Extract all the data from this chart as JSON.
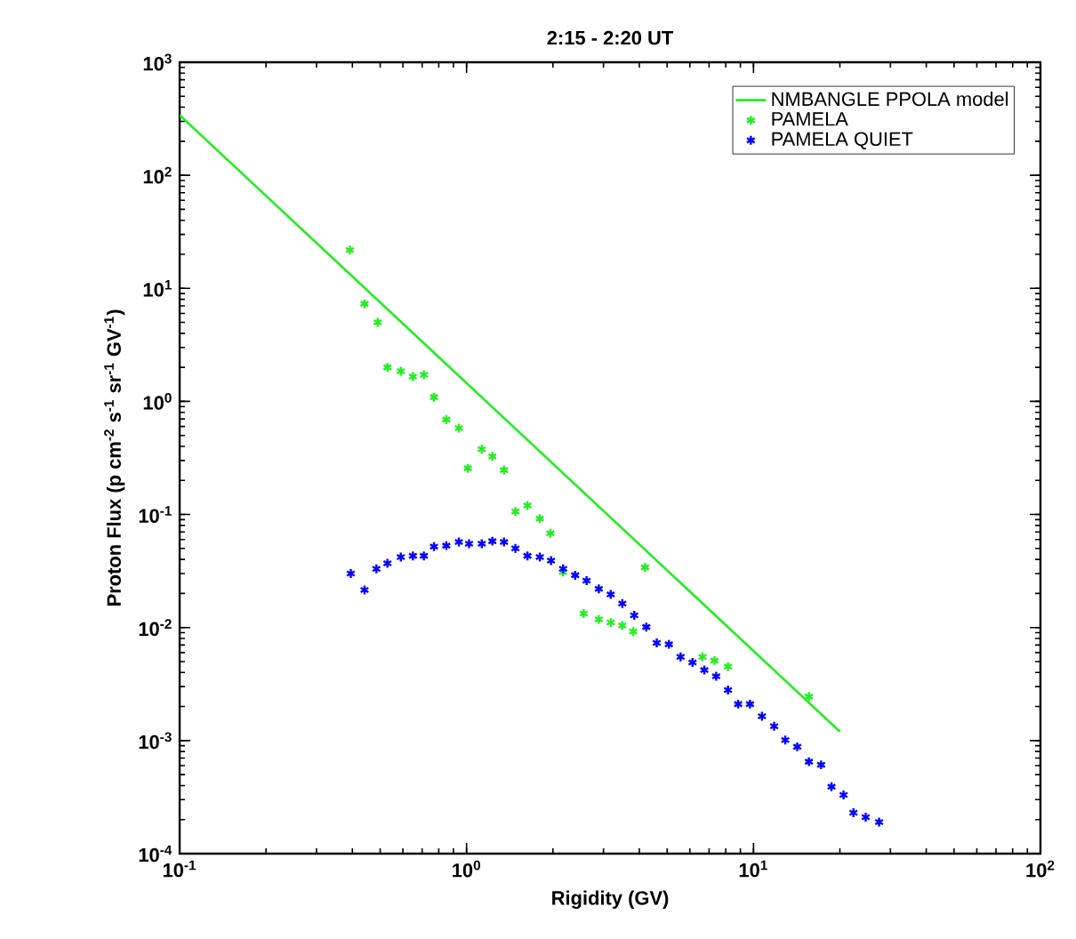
{
  "chart_data": {
    "type": "scatter",
    "title": "2:15 - 2:20 UT",
    "xlabel": "Rigidity (GV)",
    "ylabel": "Proton Flux (p cm$^{-2}$ s$^{-1}$ sr$^{-1}$ GV$^{-1}$)",
    "log": "xy",
    "legend": "top right",
    "grid": false,
    "xlim": [
      0.1,
      100
    ],
    "ylim": [
      0.0001,
      1000
    ],
    "xticks": [
      {
        "value": 0.1,
        "label": "10$^{-1}$"
      },
      {
        "value": 1,
        "label": "10$^{0}$"
      },
      {
        "value": 10,
        "label": "10$^{1}$"
      },
      {
        "value": 100,
        "label": "10$^{2}$"
      }
    ],
    "yticks": [
      {
        "value": 0.0001,
        "label": "10$^{-4}$"
      },
      {
        "value": 0.001,
        "label": "10$^{-3}$"
      },
      {
        "value": 0.01,
        "label": "10$^{-2}$"
      },
      {
        "value": 0.1,
        "label": "10$^{-1}$"
      },
      {
        "value": 1,
        "label": "10$^{0}$"
      },
      {
        "value": 10,
        "label": "10$^{1}$"
      },
      {
        "value": 100,
        "label": "10$^{2}$"
      },
      {
        "value": 1000,
        "label": "10$^{3}$"
      }
    ],
    "series": [
      {
        "name": "NMBANGLE PPOLA model",
        "type": "line",
        "color": "#22ee22",
        "line_style": "solid",
        "x": [
          0.1,
          20
        ],
        "values": [
          340,
          0.0012
        ]
      },
      {
        "name": "PAMELA",
        "marker": "cross",
        "color": "#22ee22",
        "x": [
          0.392,
          0.441,
          0.49,
          0.53,
          0.59,
          0.65,
          0.71,
          0.77,
          0.85,
          0.94,
          1.01,
          1.13,
          1.23,
          1.35,
          1.48,
          1.63,
          1.8,
          1.96,
          2.17,
          2.56,
          2.89,
          3.18,
          3.49,
          3.81,
          4.19,
          6.64,
          7.31,
          8.15,
          15.6
        ],
        "values": [
          21.8,
          7.3,
          5.0,
          2.0,
          1.85,
          1.66,
          1.72,
          1.09,
          0.69,
          0.58,
          0.256,
          0.377,
          0.326,
          0.247,
          0.106,
          0.12,
          0.092,
          0.068,
          0.031,
          0.0133,
          0.0118,
          0.0111,
          0.0104,
          0.0092,
          0.034,
          0.0055,
          0.0051,
          0.0045,
          0.00245
        ]
      },
      {
        "name": "PAMELA QUIET",
        "marker": "cross",
        "color": "#0000ff",
        "x": [
          0.395,
          0.441,
          0.485,
          0.53,
          0.59,
          0.65,
          0.71,
          0.77,
          0.85,
          0.94,
          1.02,
          1.13,
          1.23,
          1.35,
          1.48,
          1.63,
          1.8,
          1.97,
          2.17,
          2.39,
          2.62,
          2.89,
          3.18,
          3.49,
          3.84,
          4.23,
          4.6,
          5.07,
          5.57,
          6.13,
          6.74,
          7.41,
          8.15,
          8.84,
          9.72,
          10.7,
          11.8,
          12.9,
          14.2,
          15.6,
          17.2,
          18.7,
          20.6,
          22.3,
          24.6,
          27.4
        ],
        "values": [
          0.03,
          0.0215,
          0.033,
          0.037,
          0.042,
          0.043,
          0.043,
          0.052,
          0.053,
          0.057,
          0.055,
          0.055,
          0.058,
          0.057,
          0.05,
          0.043,
          0.042,
          0.039,
          0.033,
          0.029,
          0.026,
          0.022,
          0.0196,
          0.0163,
          0.0128,
          0.0101,
          0.0073,
          0.0071,
          0.0055,
          0.0049,
          0.0042,
          0.0037,
          0.0028,
          0.0021,
          0.0021,
          0.00164,
          0.00134,
          0.00101,
          0.00088,
          0.00065,
          0.00061,
          0.00039,
          0.00033,
          0.00023,
          0.00021,
          0.00019
        ]
      }
    ]
  }
}
